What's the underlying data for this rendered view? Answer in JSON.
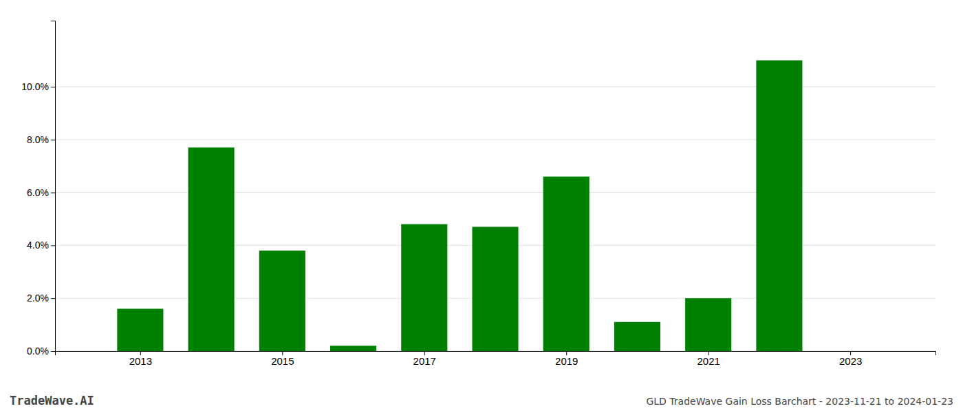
{
  "chart_data": {
    "type": "bar",
    "x": [
      2013,
      2014,
      2015,
      2016,
      2017,
      2018,
      2019,
      2020,
      2021,
      2022,
      2023
    ],
    "values": [
      0.016,
      0.077,
      0.038,
      0.002,
      0.048,
      0.047,
      0.066,
      0.011,
      0.02,
      0.11,
      0.0
    ],
    "color": "#008000",
    "xlim": [
      2011.8,
      2024.2
    ],
    "xticks": [
      2013,
      2015,
      2017,
      2019,
      2021,
      2023
    ],
    "ylim": [
      0,
      0.125
    ],
    "yticks": [
      {
        "value": 0.0,
        "label": "0.0%"
      },
      {
        "value": 0.02,
        "label": "2.0%"
      },
      {
        "value": 0.04,
        "label": "4.0%"
      },
      {
        "value": 0.06,
        "label": "6.0%"
      },
      {
        "value": 0.08,
        "label": "8.0%"
      },
      {
        "value": 0.1,
        "label": "10.0%"
      }
    ],
    "grid": true,
    "annotations": [
      "TradeWave.AI",
      "GLD TradeWave Gain Loss Barchart - 2023-11-21 to 2024-01-23"
    ]
  }
}
